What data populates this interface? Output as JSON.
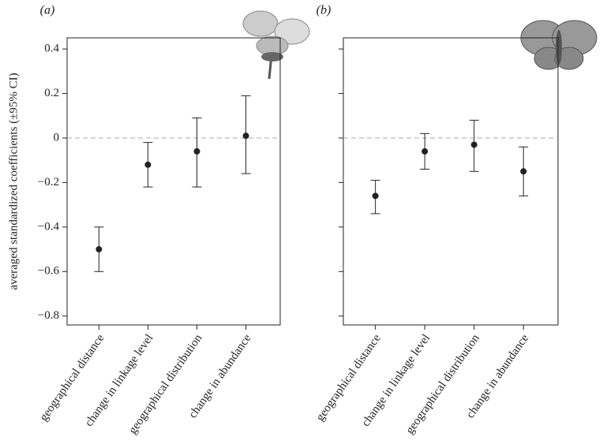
{
  "chart_data": [
    {
      "type": "errorbar",
      "title": "(a)",
      "y_label": "averaged standardized coefficients  (±95% CI)",
      "categories": [
        "geographical distance",
        "change in linkage level",
        "geographical distribution",
        "change in abundance"
      ],
      "values": [
        -0.5,
        -0.12,
        -0.06,
        0.01
      ],
      "lower": [
        -0.6,
        -0.22,
        -0.22,
        -0.16
      ],
      "upper": [
        -0.4,
        -0.02,
        0.09,
        0.19
      ],
      "ylim": [
        -0.84,
        0.45
      ],
      "yticks": [
        {
          "value": -0.8,
          "label": "−0.8"
        },
        {
          "value": -0.6,
          "label": "−0.6"
        },
        {
          "value": -0.4,
          "label": "−0.4"
        },
        {
          "value": -0.2,
          "label": "−0.2"
        },
        0,
        0.2,
        0.4
      ],
      "reference_line": 0,
      "color": "#222222"
    },
    {
      "type": "errorbar",
      "title": "(b)",
      "categories": [
        "geographical distance",
        "change in linkage level",
        "geographical distribution",
        "change in abundance"
      ],
      "values": [
        -0.26,
        -0.06,
        -0.03,
        -0.15
      ],
      "lower": [
        -0.34,
        -0.14,
        -0.15,
        -0.26
      ],
      "upper": [
        -0.19,
        0.02,
        0.08,
        -0.04
      ],
      "ylim": [
        -0.84,
        0.45
      ],
      "yticks": [
        {
          "value": -0.8,
          "label": "−0.8"
        },
        {
          "value": -0.6,
          "label": "−0.6"
        },
        {
          "value": -0.4,
          "label": "−0.4"
        },
        {
          "value": -0.2,
          "label": "−0.2"
        },
        0,
        0.2,
        0.4
      ],
      "reference_line": 0,
      "color": "#222222"
    }
  ]
}
